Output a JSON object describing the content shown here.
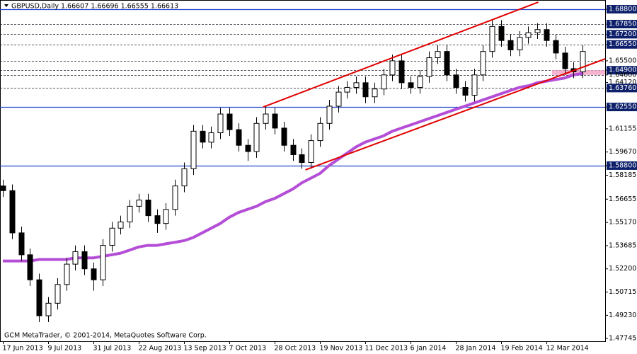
{
  "chart_data": {
    "type": "candlestick",
    "header": "GBPUSD,Daily  1.66607 1.66696 1.66555 1.66613",
    "footer": "GCM MetaTrader, © 2001-2014, MetaQuotes Software Corp.",
    "categories": [
      "17 Jun 2013",
      null,
      null,
      null,
      null,
      "9 Jul 2013",
      null,
      null,
      null,
      null,
      "31 Jul 2013",
      null,
      null,
      null,
      null,
      "22 Aug 2013",
      null,
      null,
      null,
      null,
      "13 Sep 2013",
      null,
      null,
      null,
      null,
      "7 Oct 2013",
      null,
      null,
      null,
      null,
      "28 Oct 2013",
      null,
      null,
      null,
      null,
      "19 Nov 2013",
      null,
      null,
      null,
      null,
      "11 Dec 2013",
      null,
      null,
      null,
      null,
      "6 Jan 2014",
      null,
      null,
      null,
      null,
      "28 Jan 2014",
      null,
      null,
      null,
      null,
      "19 Feb 2014",
      null,
      null,
      null,
      null,
      "12 Mar 2014",
      null,
      null,
      null,
      null
    ],
    "ohlc": [
      [
        1.575,
        1.579,
        1.568,
        1.572
      ],
      [
        1.572,
        1.576,
        1.541,
        1.545
      ],
      [
        1.545,
        1.549,
        1.527,
        1.531
      ],
      [
        1.531,
        1.535,
        1.511,
        1.515
      ],
      [
        1.515,
        1.519,
        1.488,
        1.492
      ],
      [
        1.492,
        1.504,
        1.488,
        1.5
      ],
      [
        1.5,
        1.516,
        1.496,
        1.512
      ],
      [
        1.512,
        1.529,
        1.508,
        1.525
      ],
      [
        1.525,
        1.537,
        1.521,
        1.533
      ],
      [
        1.533,
        1.537,
        1.518,
        1.522
      ],
      [
        1.522,
        1.526,
        1.508,
        1.515
      ],
      [
        1.515,
        1.541,
        1.511,
        1.537
      ],
      [
        1.537,
        1.552,
        1.533,
        1.548
      ],
      [
        1.548,
        1.556,
        1.544,
        1.552
      ],
      [
        1.552,
        1.566,
        1.548,
        1.562
      ],
      [
        1.562,
        1.57,
        1.558,
        1.566
      ],
      [
        1.566,
        1.57,
        1.552,
        1.556
      ],
      [
        1.556,
        1.56,
        1.545,
        1.551
      ],
      [
        1.551,
        1.564,
        1.547,
        1.56
      ],
      [
        1.56,
        1.579,
        1.556,
        1.575
      ],
      [
        1.575,
        1.59,
        1.571,
        1.586
      ],
      [
        1.586,
        1.614,
        1.582,
        1.61
      ],
      [
        1.61,
        1.614,
        1.599,
        1.603
      ],
      [
        1.603,
        1.613,
        1.599,
        1.609
      ],
      [
        1.609,
        1.625,
        1.605,
        1.621
      ],
      [
        1.621,
        1.625,
        1.607,
        1.611
      ],
      [
        1.611,
        1.615,
        1.597,
        1.601
      ],
      [
        1.601,
        1.605,
        1.591,
        1.597
      ],
      [
        1.597,
        1.619,
        1.593,
        1.615
      ],
      [
        1.615,
        1.626,
        1.611,
        1.621
      ],
      [
        1.621,
        1.625,
        1.608,
        1.612
      ],
      [
        1.612,
        1.616,
        1.597,
        1.601
      ],
      [
        1.601,
        1.605,
        1.591,
        1.595
      ],
      [
        1.595,
        1.599,
        1.586,
        1.59
      ],
      [
        1.59,
        1.608,
        1.586,
        1.604
      ],
      [
        1.604,
        1.619,
        1.6,
        1.615
      ],
      [
        1.615,
        1.63,
        1.611,
        1.626
      ],
      [
        1.626,
        1.639,
        1.622,
        1.635
      ],
      [
        1.635,
        1.642,
        1.631,
        1.638
      ],
      [
        1.638,
        1.645,
        1.634,
        1.641
      ],
      [
        1.641,
        1.645,
        1.628,
        1.632
      ],
      [
        1.632,
        1.641,
        1.628,
        1.637
      ],
      [
        1.637,
        1.65,
        1.633,
        1.646
      ],
      [
        1.646,
        1.659,
        1.642,
        1.655
      ],
      [
        1.655,
        1.659,
        1.637,
        1.641
      ],
      [
        1.641,
        1.645,
        1.634,
        1.638
      ],
      [
        1.638,
        1.649,
        1.634,
        1.645
      ],
      [
        1.645,
        1.661,
        1.641,
        1.657
      ],
      [
        1.657,
        1.665,
        1.653,
        1.661
      ],
      [
        1.661,
        1.665,
        1.642,
        1.646
      ],
      [
        1.646,
        1.65,
        1.634,
        1.638
      ],
      [
        1.638,
        1.642,
        1.629,
        1.633
      ],
      [
        1.633,
        1.65,
        1.629,
        1.646
      ],
      [
        1.646,
        1.665,
        1.642,
        1.661
      ],
      [
        1.661,
        1.681,
        1.657,
        1.677
      ],
      [
        1.677,
        1.681,
        1.664,
        1.668
      ],
      [
        1.668,
        1.672,
        1.658,
        1.662
      ],
      [
        1.662,
        1.674,
        1.658,
        1.67
      ],
      [
        1.67,
        1.677,
        1.666,
        1.673
      ],
      [
        1.673,
        1.679,
        1.669,
        1.675
      ],
      [
        1.675,
        1.679,
        1.664,
        1.668
      ],
      [
        1.668,
        1.672,
        1.656,
        1.66
      ],
      [
        1.66,
        1.664,
        1.646,
        1.65
      ],
      [
        1.65,
        1.654,
        1.644,
        1.648
      ],
      [
        1.648,
        1.665,
        1.644,
        1.661
      ]
    ],
    "moving_average": {
      "color": "#b44ed6",
      "values": [
        1.527,
        1.527,
        1.527,
        1.527,
        1.528,
        1.528,
        1.528,
        1.528,
        1.529,
        1.529,
        1.529,
        1.53,
        1.531,
        1.532,
        1.534,
        1.536,
        1.537,
        1.537,
        1.538,
        1.539,
        1.54,
        1.542,
        1.545,
        1.548,
        1.551,
        1.555,
        1.558,
        1.56,
        1.562,
        1.565,
        1.567,
        1.57,
        1.573,
        1.577,
        1.58,
        1.583,
        1.588,
        1.592,
        1.596,
        1.6,
        1.603,
        1.605,
        1.607,
        1.61,
        1.612,
        1.614,
        1.616,
        1.618,
        1.62,
        1.622,
        1.624,
        1.626,
        1.628,
        1.63,
        1.632,
        1.634,
        1.636,
        1.638,
        1.639,
        1.641,
        1.642,
        1.643,
        1.644,
        1.646,
        1.647
      ]
    },
    "trendlines": [
      {
        "color": "#e00000",
        "x": [
          28.75,
          59.1
        ],
        "y": [
          1.6255,
          1.6925
        ]
      },
      {
        "color": "#e00000",
        "x": [
          33.4,
          66.5
        ],
        "y": [
          1.5853,
          1.6563
        ]
      }
    ],
    "zone": {
      "color": "#f4a6c8",
      "x": [
        60.6,
        66.5
      ],
      "y": [
        1.646,
        1.649
      ]
    },
    "levels": [
      {
        "value": 1.688,
        "style": "solid"
      },
      {
        "value": 1.6785,
        "style": "dashed"
      },
      {
        "value": 1.672,
        "style": "dashed"
      },
      {
        "value": 1.6655,
        "style": "dashed"
      },
      {
        "value": 1.655,
        "style": "dashed"
      },
      {
        "value": 1.649,
        "style": "dashed"
      },
      {
        "value": 1.646,
        "style": "dashed"
      },
      {
        "value": 1.6376,
        "style": "dashed"
      },
      {
        "value": 1.6255,
        "style": "solid"
      },
      {
        "value": 1.588,
        "style": "solid"
      }
    ],
    "ylim": [
      1.4757,
      1.6939
    ],
    "yticks": [
      {
        "value": 1.688,
        "label": "1.68800",
        "highlight": true
      },
      {
        "value": 1.6785,
        "label": "1.67850",
        "highlight": true
      },
      {
        "value": 1.672,
        "label": "1.67200",
        "highlight": true
      },
      {
        "value": 1.6655,
        "label": "1.66550",
        "highlight": true
      },
      {
        "value": 1.655,
        "label": "1.65500"
      },
      {
        "value": 1.649,
        "label": "1.64900",
        "highlight": true
      },
      {
        "value": 1.646,
        "label": "1.64600"
      },
      {
        "value": 1.6412,
        "label": "1.64120"
      },
      {
        "value": 1.6376,
        "label": "1.63760",
        "highlight": true
      },
      {
        "value": 1.6255,
        "label": "1.62550",
        "highlight": true
      },
      1.61155,
      {
        "value": 1.5967,
        "label": "1.59670"
      },
      {
        "value": 1.588,
        "label": "1.58800",
        "highlight": true
      },
      1.58185,
      1.56655,
      {
        "value": 1.5517,
        "label": "1.55170"
      },
      1.53685,
      {
        "value": 1.522,
        "label": "1.52200"
      },
      1.50715,
      {
        "value": 1.4923,
        "label": "1.49230"
      },
      1.47745
    ]
  }
}
